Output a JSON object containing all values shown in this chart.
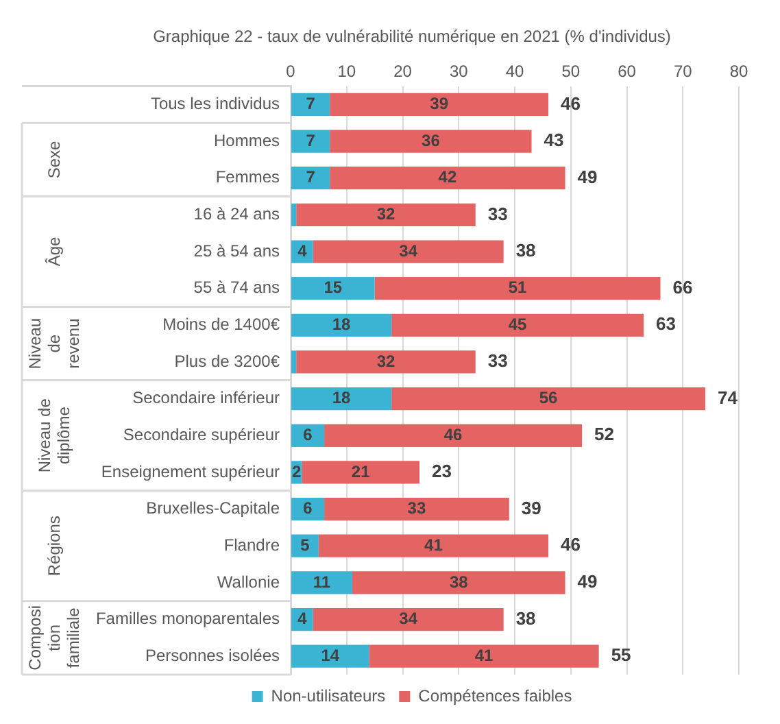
{
  "chart_data": {
    "type": "bar",
    "orientation": "horizontal",
    "stacked": true,
    "title": "Graphique 22 - taux de vulnérabilité numérique en 2021 (% d'individus)",
    "categories": [
      "Tous les individus",
      "Hommes",
      "Femmes",
      "16 à 24 ans",
      "25 à 54 ans",
      "55 à 74 ans",
      "Moins de 1400€",
      "Plus de 3200€",
      "Secondaire inférieur",
      "Secondaire supérieur",
      "Enseignement supérieur",
      "Bruxelles-Capitale",
      "Flandre",
      "Wallonie",
      "Familles monoparentales",
      "Personnes isolées"
    ],
    "series": [
      {
        "name": "Non-utilisateurs",
        "color": "#3bb3d3",
        "values": [
          7,
          7,
          7,
          1,
          4,
          15,
          18,
          1,
          18,
          6,
          2,
          6,
          5,
          11,
          4,
          14
        ],
        "value_labels": [
          "7",
          "7",
          "7",
          null,
          "4",
          "15",
          "18",
          null,
          "18",
          "6",
          "2",
          "6",
          "5",
          "11",
          "4",
          "14"
        ]
      },
      {
        "name": "Compétences faibles",
        "color": "#e46363",
        "values": [
          39,
          36,
          42,
          32,
          34,
          51,
          45,
          32,
          56,
          46,
          21,
          33,
          41,
          38,
          34,
          41
        ],
        "value_labels": [
          "39",
          "36",
          "42",
          "32",
          "34",
          "51",
          "45",
          "32",
          "56",
          "46",
          "21",
          "33",
          "41",
          "38",
          "34",
          "41"
        ]
      }
    ],
    "totals": [
      "46",
      "43",
      "49",
      "33",
      "38",
      "66",
      "63",
      "33",
      "74",
      "52",
      "23",
      "39",
      "46",
      "49",
      "38",
      "55"
    ],
    "xlim": [
      0,
      80
    ],
    "xticks": [
      0,
      10,
      20,
      30,
      40,
      50,
      60,
      70,
      80
    ],
    "grid": "x",
    "legend": "bottom",
    "annotations": [
      "Sexe",
      "Âge",
      "Niveau de revenu",
      "Niveau de diplôme",
      "Régions",
      "Composition familiale"
    ]
  }
}
